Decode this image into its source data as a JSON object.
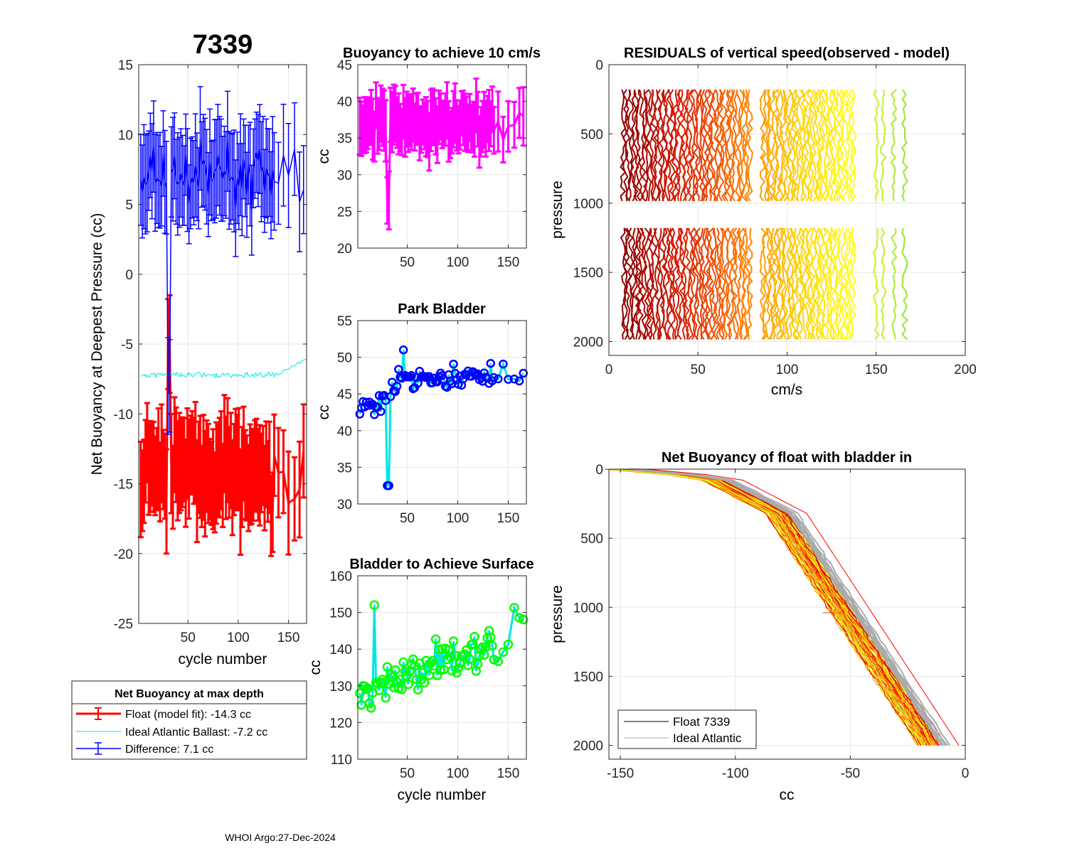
{
  "figure": {
    "float_id": "7339",
    "footer": "WHOI Argo:27-Dec-2024"
  },
  "chart_data": [
    {
      "id": "net-buoyancy",
      "type": "line",
      "title": "7339",
      "xlabel": "cycle number",
      "ylabel": "Net Buoyancy at Deepest Pressure (cc)",
      "xlim": [
        1,
        168
      ],
      "ylim": [
        -25,
        15
      ],
      "xticks": [
        50,
        100,
        150
      ],
      "yticks": [
        15,
        10,
        5,
        0,
        -5,
        -10,
        -15,
        -20,
        -25
      ],
      "legend": {
        "title": "Net Buoyancy at max depth",
        "entries": [
          "Float (model fit): -14.3 cc",
          "Ideal Atlantic Ballast:  -7.2 cc",
          "Difference:   7.1 cc"
        ]
      },
      "series": [
        {
          "name": "Float (model fit)",
          "color": "#ff0000",
          "center": -14.3,
          "err": 2.8
        },
        {
          "name": "Ideal Atlantic Ballast",
          "color": "#00e5e5",
          "center": -7.2
        },
        {
          "name": "Difference",
          "color": "#0000ff",
          "center": 7.1,
          "err": 2.8
        }
      ]
    },
    {
      "id": "buoyancy-10cms",
      "type": "line",
      "title": "Buoyancy to achieve 10 cm/s",
      "xlabel": "",
      "ylabel": "cc",
      "xlim": [
        1,
        168
      ],
      "ylim": [
        20,
        45
      ],
      "xticks": [
        50,
        100,
        150
      ],
      "yticks": [
        45,
        40,
        35,
        30,
        25,
        20
      ],
      "series": [
        {
          "name": "buoyancy",
          "color": "#ff00ff",
          "center": 37,
          "err": 3
        }
      ]
    },
    {
      "id": "park-bladder",
      "type": "line",
      "title": "Park Bladder",
      "xlabel": "",
      "ylabel": "cc",
      "xlim": [
        1,
        168
      ],
      "ylim": [
        30,
        55
      ],
      "xticks": [
        50,
        100,
        150
      ],
      "yticks": [
        55,
        50,
        45,
        40,
        35,
        30
      ],
      "series": [
        {
          "name": "park bladder",
          "color": "#00e5e5",
          "marker_color": "#0000ff",
          "center": 46.5
        }
      ]
    },
    {
      "id": "bladder-surface",
      "type": "line",
      "title": "Bladder to Achieve Surface",
      "xlabel": "cycle number",
      "ylabel": "cc",
      "xlim": [
        1,
        168
      ],
      "ylim": [
        110,
        160
      ],
      "xticks": [
        50,
        100,
        150
      ],
      "yticks": [
        160,
        150,
        140,
        130,
        120,
        110
      ],
      "series": [
        {
          "name": "surface bladder",
          "color": "#00e5e5",
          "marker_color": "#00ff00",
          "center": 135
        }
      ]
    },
    {
      "id": "residuals",
      "type": "line",
      "title": "RESIDUALS of vertical speed(observed - model)",
      "xlabel": "cm/s",
      "ylabel": "pressure",
      "xlim": [
        0,
        200
      ],
      "ylim": [
        2100,
        0
      ],
      "xticks": [
        0,
        50,
        100,
        150,
        200
      ],
      "yticks": [
        0,
        500,
        1000,
        1500,
        2000
      ],
      "profile_x_range": [
        8,
        168
      ],
      "upper_pressure": [
        180,
        1010
      ],
      "lower_pressure": [
        1180,
        2000
      ]
    },
    {
      "id": "net-buoyancy-profile",
      "type": "line",
      "title": "Net Buoyancy of float with bladder in",
      "xlabel": "cc",
      "ylabel": "pressure",
      "xlim": [
        -155,
        0
      ],
      "ylim": [
        2100,
        0
      ],
      "xticks": [
        -150,
        -100,
        -50,
        0
      ],
      "yticks": [
        0,
        500,
        1000,
        1500,
        2000
      ],
      "legend": {
        "entries": [
          "Float 7339",
          "Ideal Atlantic"
        ],
        "colors": [
          "#000000",
          "#aaaaaa"
        ]
      }
    }
  ]
}
